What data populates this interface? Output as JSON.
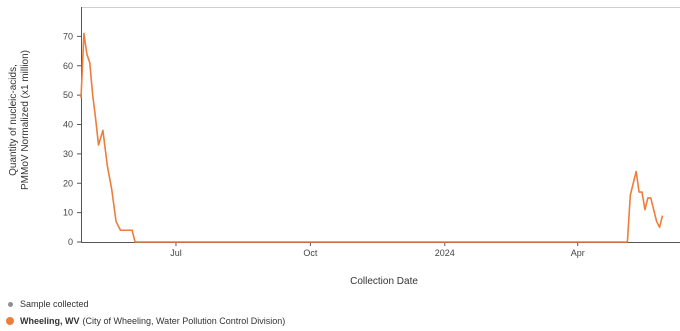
{
  "chart_data": {
    "type": "line",
    "xlabel": "Collection Date",
    "ylabel_line1": "Quantity of nucleic-acids,",
    "ylabel_line2": "PMMoV Normalized (x1 million)",
    "ylim": [
      0,
      80
    ],
    "yticks": [
      0,
      10,
      20,
      30,
      40,
      50,
      60,
      70
    ],
    "xlim": [
      "2023-04-27",
      "2024-06-10"
    ],
    "xticks": [
      {
        "date": "2023-07-01",
        "label": "Jul"
      },
      {
        "date": "2023-10-01",
        "label": "Oct"
      },
      {
        "date": "2024-01-01",
        "label": "2024"
      },
      {
        "date": "2024-04-01",
        "label": "Apr"
      }
    ],
    "grid": false,
    "series": [
      {
        "name": "Wheeling, WV",
        "color": "#ee7d3b",
        "points": [
          [
            "2023-04-27",
            49
          ],
          [
            "2023-04-29",
            71
          ],
          [
            "2023-05-01",
            64
          ],
          [
            "2023-05-03",
            61
          ],
          [
            "2023-05-05",
            50
          ],
          [
            "2023-05-07",
            42
          ],
          [
            "2023-05-09",
            33
          ],
          [
            "2023-05-12",
            38
          ],
          [
            "2023-05-15",
            26
          ],
          [
            "2023-05-18",
            18
          ],
          [
            "2023-05-21",
            7
          ],
          [
            "2023-05-24",
            4
          ],
          [
            "2023-05-28",
            4
          ],
          [
            "2023-06-01",
            4
          ],
          [
            "2023-06-03",
            0
          ],
          [
            "2024-05-05",
            0
          ],
          [
            "2024-05-07",
            16
          ],
          [
            "2024-05-09",
            20
          ],
          [
            "2024-05-11",
            24
          ],
          [
            "2024-05-13",
            17
          ],
          [
            "2024-05-15",
            17
          ],
          [
            "2024-05-17",
            11
          ],
          [
            "2024-05-19",
            15
          ],
          [
            "2024-05-21",
            15
          ],
          [
            "2024-05-23",
            11
          ],
          [
            "2024-05-25",
            7
          ],
          [
            "2024-05-27",
            5
          ],
          [
            "2024-05-29",
            9
          ]
        ]
      }
    ]
  },
  "legend": {
    "sample_label": "Sample collected",
    "series_name": "Wheeling, WV",
    "series_detail": "(City of Wheeling, Water Pollution Control Division)",
    "series_color": "#ee7d3b"
  }
}
